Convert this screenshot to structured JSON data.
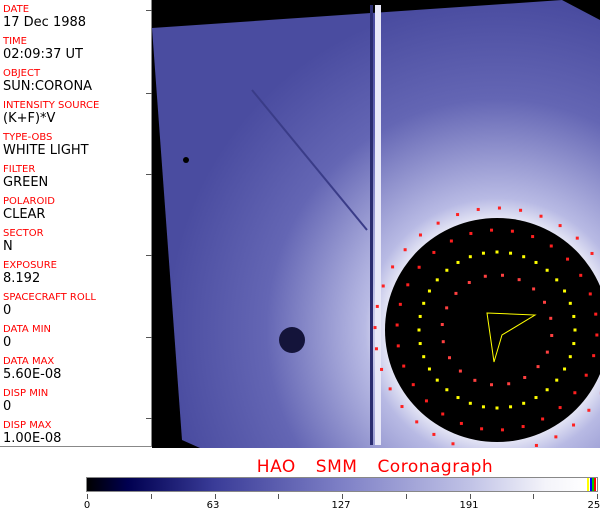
{
  "fields": [
    {
      "label": "DATE",
      "value": "17 Dec 1988"
    },
    {
      "label": "TIME",
      "value": "02:09:37 UT"
    },
    {
      "label": "OBJECT",
      "value": "SUN:CORONA"
    },
    {
      "label": "INTENSITY SOURCE",
      "value": "(K+F)*V"
    },
    {
      "label": "TYPE-OBS",
      "value": "WHITE LIGHT"
    },
    {
      "label": "FILTER",
      "value": "GREEN"
    },
    {
      "label": "POLAROID",
      "value": "CLEAR"
    },
    {
      "label": "SECTOR",
      "value": "N"
    },
    {
      "label": "EXPOSURE",
      "value": "8.192"
    },
    {
      "label": "SPACECRAFT ROLL",
      "value": "0"
    },
    {
      "label": "DATA MIN",
      "value": "0"
    },
    {
      "label": "DATA MAX",
      "value": "5.60E-08"
    },
    {
      "label": "DISP MIN",
      "value": "0"
    },
    {
      "label": "DISP MAX",
      "value": "1.00E-08"
    }
  ],
  "title": {
    "part1": "HAO",
    "part2": "SMM",
    "part3": "Coronagraph"
  },
  "colorbar": {
    "ticks": [
      "0",
      "63",
      "127",
      "191",
      "255"
    ],
    "min": 0,
    "max": 255
  },
  "colors": {
    "label": "#ff0000",
    "image_blue": "#4a4ca0",
    "overlay_yellow": "#ffff00",
    "overlay_red": "#ff0000"
  }
}
